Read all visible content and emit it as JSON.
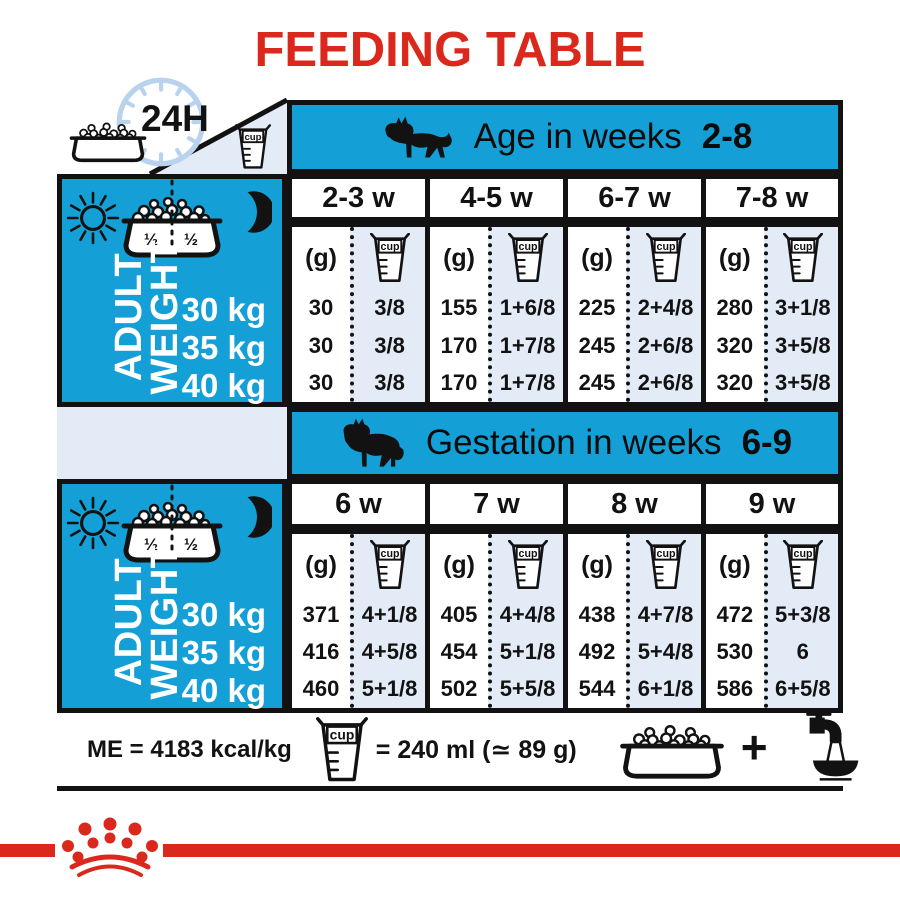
{
  "title": "FEEDING TABLE",
  "top_left": {
    "hours_label": "24H"
  },
  "left_panel": {
    "title_line1": "ADULT",
    "title_line2": "WEIGHT",
    "half_left": "½",
    "half_right": "½",
    "weights": [
      "30 kg",
      "35 kg",
      "40 kg"
    ]
  },
  "units": {
    "grams": "(g)",
    "cup": "cup"
  },
  "sections": [
    {
      "header_text": "Age in weeks",
      "header_range": "2-8",
      "columns": [
        {
          "week": "2-3 w",
          "grams": [
            "30",
            "30",
            "30"
          ],
          "cups": [
            "3/8",
            "3/8",
            "3/8"
          ]
        },
        {
          "week": "4-5 w",
          "grams": [
            "155",
            "170",
            "170"
          ],
          "cups": [
            "1+6/8",
            "1+7/8",
            "1+7/8"
          ]
        },
        {
          "week": "6-7 w",
          "grams": [
            "225",
            "245",
            "245"
          ],
          "cups": [
            "2+4/8",
            "2+6/8",
            "2+6/8"
          ]
        },
        {
          "week": "7-8 w",
          "grams": [
            "280",
            "320",
            "320"
          ],
          "cups": [
            "3+1/8",
            "3+5/8",
            "3+5/8"
          ]
        }
      ]
    },
    {
      "header_text": "Gestation in weeks",
      "header_range": "6-9",
      "columns": [
        {
          "week": "6 w",
          "grams": [
            "371",
            "416",
            "460"
          ],
          "cups": [
            "4+1/8",
            "4+5/8",
            "5+1/8"
          ]
        },
        {
          "week": "7 w",
          "grams": [
            "405",
            "454",
            "502"
          ],
          "cups": [
            "4+4/8",
            "5+1/8",
            "5+5/8"
          ]
        },
        {
          "week": "8 w",
          "grams": [
            "438",
            "492",
            "544"
          ],
          "cups": [
            "4+7/8",
            "5+4/8",
            "6+1/8"
          ]
        },
        {
          "week": "9 w",
          "grams": [
            "472",
            "530",
            "586"
          ],
          "cups": [
            "5+3/8",
            "6",
            "6+5/8"
          ]
        }
      ]
    }
  ],
  "footer": {
    "me_label": "ME = 4183 kcal/kg",
    "cup_equiv": "= 240 ml (≃ 89 g)",
    "plus": "+"
  },
  "colors": {
    "teal": "#14a0d6",
    "light_blue": "#e3ebf6",
    "red": "#da291c",
    "ink": "#121212"
  },
  "icons": [
    "kibble-bowl-icon",
    "clock-24h-icon",
    "measuring-cup-icon",
    "puppy-dog-icon",
    "adult-dog-icon",
    "sun-icon",
    "moon-icon",
    "faucet-water-icon",
    "crown-logo-icon"
  ]
}
